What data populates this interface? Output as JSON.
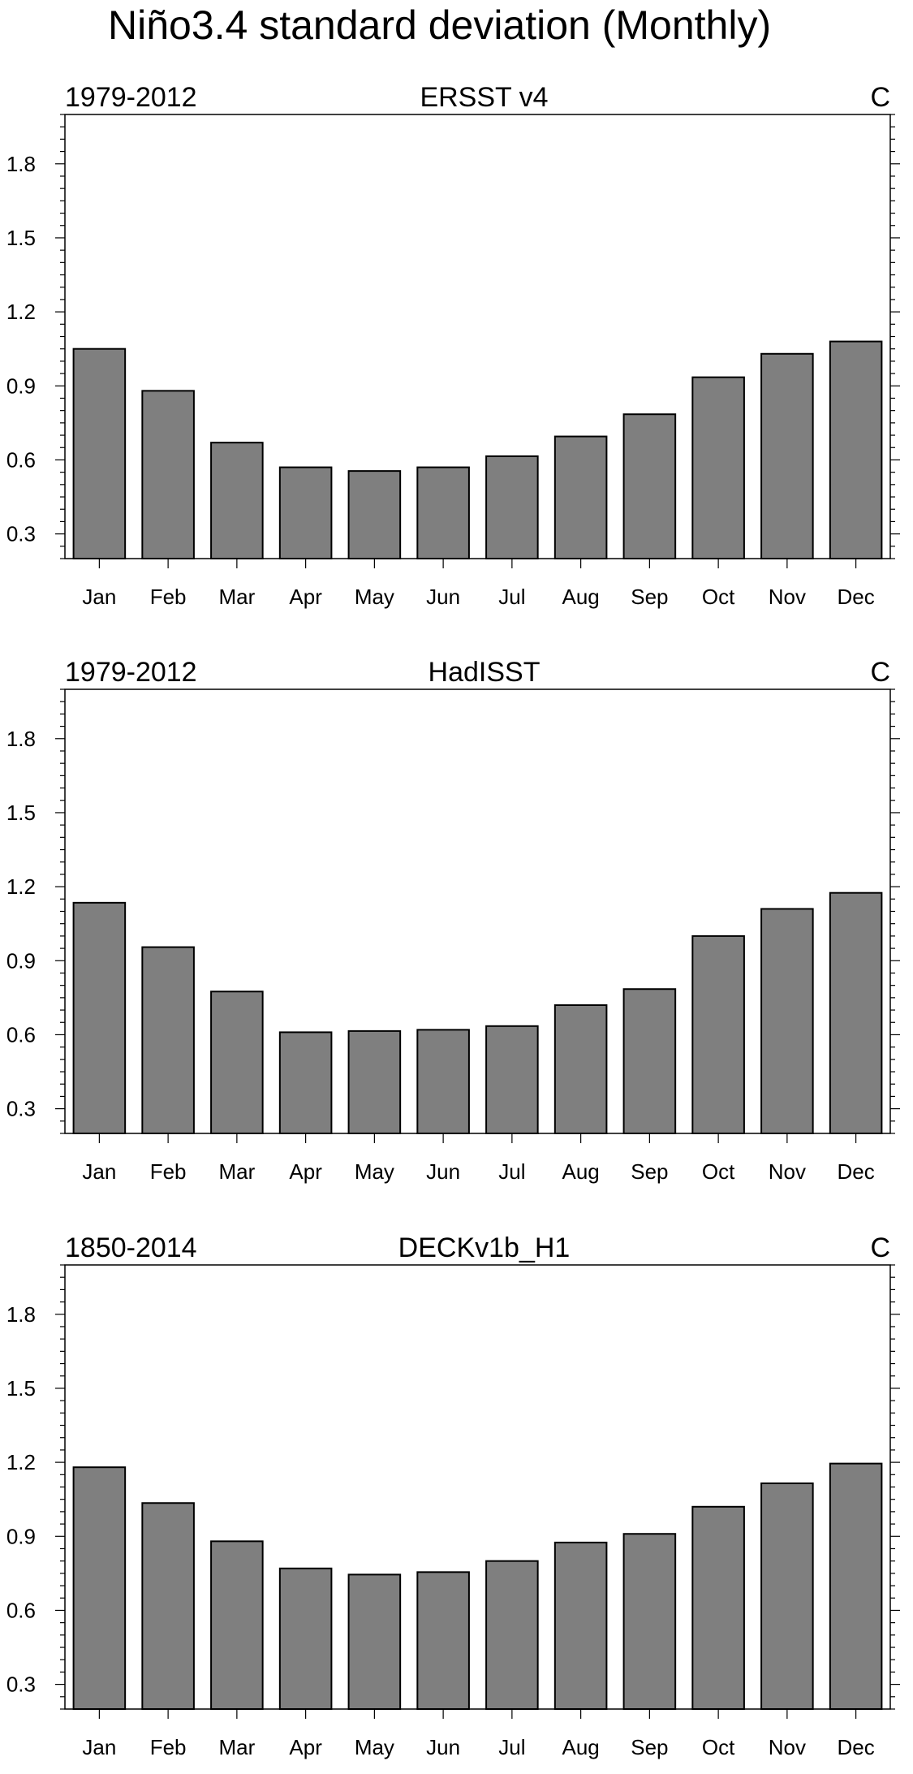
{
  "figure_title": "Niño3.4 standard deviation (Monthly)",
  "colors": {
    "bar_fill": "#7f7f7f",
    "bar_stroke": "#000000",
    "axis": "#000000"
  },
  "chart_data": [
    {
      "type": "bar",
      "title": "ERSST v4",
      "left_label": "1979-2012",
      "right_label": "C",
      "categories": [
        "Jan",
        "Feb",
        "Mar",
        "Apr",
        "May",
        "Jun",
        "Jul",
        "Aug",
        "Sep",
        "Oct",
        "Nov",
        "Dec"
      ],
      "values": [
        1.05,
        0.88,
        0.67,
        0.57,
        0.555,
        0.57,
        0.615,
        0.695,
        0.785,
        0.935,
        1.03,
        1.08
      ],
      "ylim": [
        0.2,
        2.0
      ],
      "yticks": [
        0.3,
        0.6,
        0.9,
        1.2,
        1.5,
        1.8
      ],
      "ytick_labels": [
        "0.3",
        "0.6",
        "0.9",
        "1.2",
        "1.5",
        "1.8"
      ],
      "xlabel": "",
      "ylabel": "",
      "grid": false
    },
    {
      "type": "bar",
      "title": "HadISST",
      "left_label": "1979-2012",
      "right_label": "C",
      "categories": [
        "Jan",
        "Feb",
        "Mar",
        "Apr",
        "May",
        "Jun",
        "Jul",
        "Aug",
        "Sep",
        "Oct",
        "Nov",
        "Dec"
      ],
      "values": [
        1.135,
        0.955,
        0.775,
        0.61,
        0.615,
        0.62,
        0.635,
        0.72,
        0.785,
        1.0,
        1.11,
        1.175
      ],
      "ylim": [
        0.2,
        2.0
      ],
      "yticks": [
        0.3,
        0.6,
        0.9,
        1.2,
        1.5,
        1.8
      ],
      "ytick_labels": [
        "0.3",
        "0.6",
        "0.9",
        "1.2",
        "1.5",
        "1.8"
      ],
      "xlabel": "",
      "ylabel": "",
      "grid": false
    },
    {
      "type": "bar",
      "title": "DECKv1b_H1",
      "left_label": "1850-2014",
      "right_label": "C",
      "categories": [
        "Jan",
        "Feb",
        "Mar",
        "Apr",
        "May",
        "Jun",
        "Jul",
        "Aug",
        "Sep",
        "Oct",
        "Nov",
        "Dec"
      ],
      "values": [
        1.18,
        1.035,
        0.88,
        0.77,
        0.745,
        0.755,
        0.8,
        0.875,
        0.91,
        1.02,
        1.115,
        1.195
      ],
      "ylim": [
        0.2,
        2.0
      ],
      "yticks": [
        0.3,
        0.6,
        0.9,
        1.2,
        1.5,
        1.8
      ],
      "ytick_labels": [
        "0.3",
        "0.6",
        "0.9",
        "1.2",
        "1.5",
        "1.8"
      ],
      "xlabel": "",
      "ylabel": "",
      "grid": false
    }
  ]
}
